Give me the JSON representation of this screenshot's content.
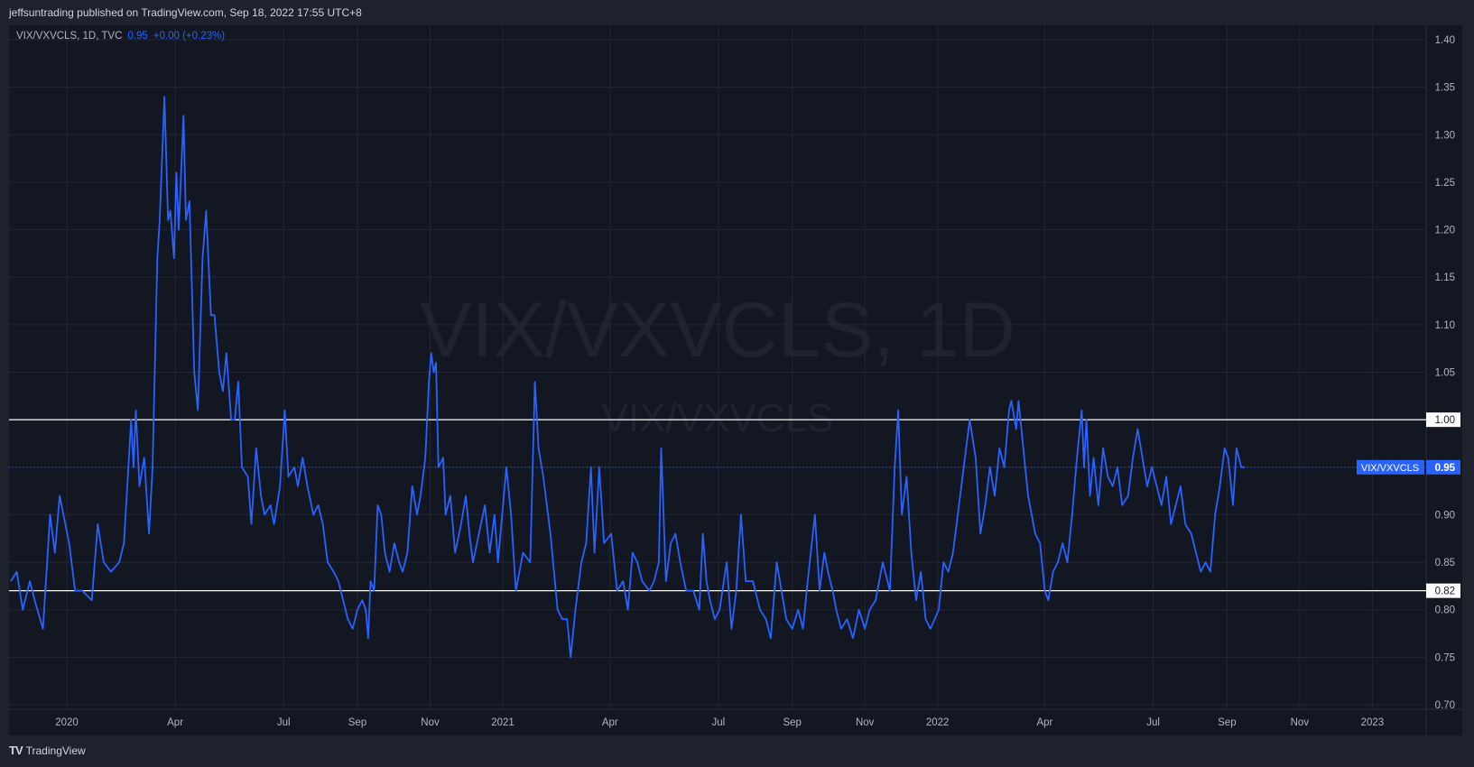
{
  "header": {
    "published": "jeffsuntrading published on TradingView.com, Sep 18, 2022 17:55 UTC+8"
  },
  "legend": {
    "symbol": "VIX/VXVCLS, 1D, TVC",
    "last": "0.95",
    "change": "+0.00 (+0.23%)"
  },
  "watermark": {
    "main": "VIX/VXVCLS, 1D",
    "sub": "VIX/VXVCLS"
  },
  "footer": {
    "brand": "TradingView",
    "logo": "tradingview-logo-icon"
  },
  "colors": {
    "background": "#131722",
    "line": "#2962ff",
    "grid": "#242733",
    "levels": "#ffffff"
  },
  "chart_data": {
    "type": "line",
    "title": "",
    "xlabel": "",
    "ylabel": "",
    "ylim": [
      0.7,
      1.4
    ],
    "grid": true,
    "y_ticks": [
      "1.40",
      "1.35",
      "1.30",
      "1.25",
      "1.20",
      "1.15",
      "1.10",
      "1.05",
      "1.00",
      "0.95",
      "0.90",
      "0.85",
      "0.80",
      "0.75",
      "0.70"
    ],
    "x_ticks": [
      {
        "label": "2020",
        "date": "2020-01-01"
      },
      {
        "label": "Apr",
        "date": "2020-04-01"
      },
      {
        "label": "Jul",
        "date": "2020-07-01"
      },
      {
        "label": "Sep",
        "date": "2020-09-01"
      },
      {
        "label": "Nov",
        "date": "2020-11-01"
      },
      {
        "label": "2021",
        "date": "2021-01-01"
      },
      {
        "label": "Apr",
        "date": "2021-04-01"
      },
      {
        "label": "Jul",
        "date": "2021-07-01"
      },
      {
        "label": "Sep",
        "date": "2021-09-01"
      },
      {
        "label": "Nov",
        "date": "2021-11-01"
      },
      {
        "label": "2022",
        "date": "2022-01-01"
      },
      {
        "label": "Apr",
        "date": "2022-04-01"
      },
      {
        "label": "Jul",
        "date": "2022-07-01"
      },
      {
        "label": "Sep",
        "date": "2022-09-01"
      },
      {
        "label": "Nov",
        "date": "2022-11-01"
      },
      {
        "label": "2023",
        "date": "2023-01-01"
      }
    ],
    "horizontal_levels": [
      {
        "value": 1.0,
        "label": "1.00"
      },
      {
        "value": 0.82,
        "label": "0.82"
      }
    ],
    "last_value": {
      "value": 0.95,
      "label": "0.95",
      "series_label": "VIX/VXVCLS"
    },
    "series": [
      {
        "name": "VIX/VXVCLS",
        "points": [
          [
            "2019-11-15",
            0.83
          ],
          [
            "2019-11-20",
            0.84
          ],
          [
            "2019-11-25",
            0.8
          ],
          [
            "2019-12-01",
            0.83
          ],
          [
            "2019-12-05",
            0.81
          ],
          [
            "2019-12-12",
            0.78
          ],
          [
            "2019-12-18",
            0.9
          ],
          [
            "2019-12-22",
            0.86
          ],
          [
            "2019-12-26",
            0.92
          ],
          [
            "2020-01-03",
            0.87
          ],
          [
            "2020-01-08",
            0.82
          ],
          [
            "2020-01-14",
            0.82
          ],
          [
            "2020-01-22",
            0.81
          ],
          [
            "2020-01-27",
            0.89
          ],
          [
            "2020-02-01",
            0.85
          ],
          [
            "2020-02-07",
            0.84
          ],
          [
            "2020-02-14",
            0.85
          ],
          [
            "2020-02-18",
            0.87
          ],
          [
            "2020-02-24",
            1.0
          ],
          [
            "2020-02-26",
            0.95
          ],
          [
            "2020-02-28",
            1.01
          ],
          [
            "2020-03-02",
            0.93
          ],
          [
            "2020-03-06",
            0.96
          ],
          [
            "2020-03-10",
            0.88
          ],
          [
            "2020-03-13",
            0.95
          ],
          [
            "2020-03-17",
            1.17
          ],
          [
            "2020-03-19",
            1.21
          ],
          [
            "2020-03-23",
            1.34
          ],
          [
            "2020-03-26",
            1.21
          ],
          [
            "2020-03-28",
            1.22
          ],
          [
            "2020-03-31",
            1.17
          ],
          [
            "2020-04-02",
            1.26
          ],
          [
            "2020-04-04",
            1.2
          ],
          [
            "2020-04-08",
            1.32
          ],
          [
            "2020-04-10",
            1.21
          ],
          [
            "2020-04-13",
            1.23
          ],
          [
            "2020-04-17",
            1.05
          ],
          [
            "2020-04-20",
            1.01
          ],
          [
            "2020-04-24",
            1.17
          ],
          [
            "2020-04-27",
            1.22
          ],
          [
            "2020-05-01",
            1.11
          ],
          [
            "2020-05-04",
            1.11
          ],
          [
            "2020-05-08",
            1.05
          ],
          [
            "2020-05-11",
            1.03
          ],
          [
            "2020-05-14",
            1.07
          ],
          [
            "2020-05-18",
            1.0
          ],
          [
            "2020-05-21",
            1.0
          ],
          [
            "2020-05-24",
            1.04
          ],
          [
            "2020-05-27",
            0.95
          ],
          [
            "2020-06-01",
            0.94
          ],
          [
            "2020-06-04",
            0.89
          ],
          [
            "2020-06-08",
            0.97
          ],
          [
            "2020-06-12",
            0.92
          ],
          [
            "2020-06-15",
            0.9
          ],
          [
            "2020-06-20",
            0.91
          ],
          [
            "2020-06-23",
            0.89
          ],
          [
            "2020-06-28",
            0.93
          ],
          [
            "2020-07-02",
            1.01
          ],
          [
            "2020-07-05",
            0.94
          ],
          [
            "2020-07-10",
            0.95
          ],
          [
            "2020-07-13",
            0.93
          ],
          [
            "2020-07-17",
            0.96
          ],
          [
            "2020-07-21",
            0.93
          ],
          [
            "2020-07-26",
            0.9
          ],
          [
            "2020-07-30",
            0.91
          ],
          [
            "2020-08-03",
            0.89
          ],
          [
            "2020-08-07",
            0.85
          ],
          [
            "2020-08-12",
            0.84
          ],
          [
            "2020-08-16",
            0.83
          ],
          [
            "2020-08-20",
            0.81
          ],
          [
            "2020-08-24",
            0.79
          ],
          [
            "2020-08-28",
            0.78
          ],
          [
            "2020-09-01",
            0.8
          ],
          [
            "2020-09-05",
            0.81
          ],
          [
            "2020-09-08",
            0.8
          ],
          [
            "2020-09-10",
            0.77
          ],
          [
            "2020-09-12",
            0.83
          ],
          [
            "2020-09-15",
            0.82
          ],
          [
            "2020-09-18",
            0.91
          ],
          [
            "2020-09-21",
            0.9
          ],
          [
            "2020-09-24",
            0.86
          ],
          [
            "2020-09-28",
            0.84
          ],
          [
            "2020-10-02",
            0.87
          ],
          [
            "2020-10-06",
            0.85
          ],
          [
            "2020-10-09",
            0.84
          ],
          [
            "2020-10-13",
            0.86
          ],
          [
            "2020-10-17",
            0.93
          ],
          [
            "2020-10-21",
            0.9
          ],
          [
            "2020-10-24",
            0.92
          ],
          [
            "2020-10-28",
            0.96
          ],
          [
            "2020-10-31",
            1.04
          ],
          [
            "2020-11-02",
            1.07
          ],
          [
            "2020-11-04",
            1.05
          ],
          [
            "2020-11-06",
            1.06
          ],
          [
            "2020-11-08",
            0.95
          ],
          [
            "2020-11-12",
            0.96
          ],
          [
            "2020-11-14",
            0.9
          ],
          [
            "2020-11-18",
            0.92
          ],
          [
            "2020-11-22",
            0.86
          ],
          [
            "2020-11-27",
            0.89
          ],
          [
            "2020-12-01",
            0.92
          ],
          [
            "2020-12-04",
            0.88
          ],
          [
            "2020-12-07",
            0.85
          ],
          [
            "2020-12-12",
            0.88
          ],
          [
            "2020-12-17",
            0.91
          ],
          [
            "2020-12-21",
            0.86
          ],
          [
            "2020-12-25",
            0.9
          ],
          [
            "2020-12-28",
            0.85
          ],
          [
            "2021-01-04",
            0.95
          ],
          [
            "2021-01-08",
            0.9
          ],
          [
            "2021-01-12",
            0.82
          ],
          [
            "2021-01-18",
            0.86
          ],
          [
            "2021-01-24",
            0.85
          ],
          [
            "2021-01-28",
            1.04
          ],
          [
            "2021-01-31",
            0.97
          ],
          [
            "2021-02-04",
            0.94
          ],
          [
            "2021-02-10",
            0.88
          ],
          [
            "2021-02-16",
            0.8
          ],
          [
            "2021-02-20",
            0.79
          ],
          [
            "2021-02-24",
            0.79
          ],
          [
            "2021-02-27",
            0.75
          ],
          [
            "2021-03-03",
            0.8
          ],
          [
            "2021-03-08",
            0.85
          ],
          [
            "2021-03-12",
            0.87
          ],
          [
            "2021-03-16",
            0.95
          ],
          [
            "2021-03-19",
            0.86
          ],
          [
            "2021-03-23",
            0.95
          ],
          [
            "2021-03-27",
            0.87
          ],
          [
            "2021-04-02",
            0.88
          ],
          [
            "2021-04-07",
            0.82
          ],
          [
            "2021-04-12",
            0.83
          ],
          [
            "2021-04-16",
            0.8
          ],
          [
            "2021-04-20",
            0.86
          ],
          [
            "2021-04-24",
            0.85
          ],
          [
            "2021-04-28",
            0.83
          ],
          [
            "2021-05-04",
            0.82
          ],
          [
            "2021-05-08",
            0.83
          ],
          [
            "2021-05-12",
            0.85
          ],
          [
            "2021-05-14",
            0.97
          ],
          [
            "2021-05-18",
            0.83
          ],
          [
            "2021-05-22",
            0.87
          ],
          [
            "2021-05-26",
            0.88
          ],
          [
            "2021-05-30",
            0.85
          ],
          [
            "2021-06-04",
            0.82
          ],
          [
            "2021-06-10",
            0.82
          ],
          [
            "2021-06-15",
            0.8
          ],
          [
            "2021-06-18",
            0.88
          ],
          [
            "2021-06-21",
            0.83
          ],
          [
            "2021-06-24",
            0.81
          ],
          [
            "2021-06-28",
            0.79
          ],
          [
            "2021-07-02",
            0.8
          ],
          [
            "2021-07-08",
            0.85
          ],
          [
            "2021-07-12",
            0.78
          ],
          [
            "2021-07-16",
            0.82
          ],
          [
            "2021-07-20",
            0.9
          ],
          [
            "2021-07-24",
            0.83
          ],
          [
            "2021-07-30",
            0.83
          ],
          [
            "2021-08-05",
            0.8
          ],
          [
            "2021-08-10",
            0.79
          ],
          [
            "2021-08-14",
            0.77
          ],
          [
            "2021-08-19",
            0.85
          ],
          [
            "2021-08-23",
            0.82
          ],
          [
            "2021-08-27",
            0.79
          ],
          [
            "2021-09-01",
            0.78
          ],
          [
            "2021-09-06",
            0.8
          ],
          [
            "2021-09-10",
            0.78
          ],
          [
            "2021-09-14",
            0.83
          ],
          [
            "2021-09-20",
            0.9
          ],
          [
            "2021-09-24",
            0.82
          ],
          [
            "2021-09-28",
            0.86
          ],
          [
            "2021-10-01",
            0.84
          ],
          [
            "2021-10-05",
            0.82
          ],
          [
            "2021-10-08",
            0.8
          ],
          [
            "2021-10-12",
            0.78
          ],
          [
            "2021-10-17",
            0.79
          ],
          [
            "2021-10-22",
            0.77
          ],
          [
            "2021-10-27",
            0.8
          ],
          [
            "2021-11-01",
            0.78
          ],
          [
            "2021-11-05",
            0.8
          ],
          [
            "2021-11-10",
            0.81
          ],
          [
            "2021-11-16",
            0.85
          ],
          [
            "2021-11-22",
            0.82
          ],
          [
            "2021-11-26",
            0.95
          ],
          [
            "2021-11-29",
            1.01
          ],
          [
            "2021-12-02",
            0.9
          ],
          [
            "2021-12-06",
            0.94
          ],
          [
            "2021-12-10",
            0.86
          ],
          [
            "2021-12-14",
            0.81
          ],
          [
            "2021-12-18",
            0.84
          ],
          [
            "2021-12-22",
            0.79
          ],
          [
            "2021-12-26",
            0.78
          ],
          [
            "2022-01-02",
            0.8
          ],
          [
            "2022-01-06",
            0.85
          ],
          [
            "2022-01-10",
            0.84
          ],
          [
            "2022-01-14",
            0.86
          ],
          [
            "2022-01-18",
            0.9
          ],
          [
            "2022-01-24",
            0.96
          ],
          [
            "2022-01-28",
            1.0
          ],
          [
            "2022-02-02",
            0.96
          ],
          [
            "2022-02-06",
            0.88
          ],
          [
            "2022-02-10",
            0.91
          ],
          [
            "2022-02-14",
            0.95
          ],
          [
            "2022-02-18",
            0.92
          ],
          [
            "2022-02-22",
            0.97
          ],
          [
            "2022-02-26",
            0.95
          ],
          [
            "2022-03-02",
            1.01
          ],
          [
            "2022-03-04",
            1.02
          ],
          [
            "2022-03-08",
            0.99
          ],
          [
            "2022-03-10",
            1.02
          ],
          [
            "2022-03-14",
            0.97
          ],
          [
            "2022-03-18",
            0.92
          ],
          [
            "2022-03-24",
            0.88
          ],
          [
            "2022-03-28",
            0.87
          ],
          [
            "2022-04-01",
            0.82
          ],
          [
            "2022-04-04",
            0.81
          ],
          [
            "2022-04-08",
            0.84
          ],
          [
            "2022-04-12",
            0.85
          ],
          [
            "2022-04-16",
            0.87
          ],
          [
            "2022-04-20",
            0.85
          ],
          [
            "2022-04-24",
            0.9
          ],
          [
            "2022-04-28",
            0.96
          ],
          [
            "2022-05-02",
            1.01
          ],
          [
            "2022-05-04",
            0.95
          ],
          [
            "2022-05-06",
            1.0
          ],
          [
            "2022-05-09",
            0.92
          ],
          [
            "2022-05-12",
            0.96
          ],
          [
            "2022-05-16",
            0.91
          ],
          [
            "2022-05-20",
            0.97
          ],
          [
            "2022-05-24",
            0.94
          ],
          [
            "2022-05-28",
            0.93
          ],
          [
            "2022-06-01",
            0.95
          ],
          [
            "2022-06-05",
            0.91
          ],
          [
            "2022-06-10",
            0.92
          ],
          [
            "2022-06-14",
            0.96
          ],
          [
            "2022-06-18",
            0.99
          ],
          [
            "2022-06-22",
            0.96
          ],
          [
            "2022-06-26",
            0.93
          ],
          [
            "2022-06-30",
            0.95
          ],
          [
            "2022-07-04",
            0.93
          ],
          [
            "2022-07-08",
            0.91
          ],
          [
            "2022-07-12",
            0.94
          ],
          [
            "2022-07-16",
            0.89
          ],
          [
            "2022-07-20",
            0.91
          ],
          [
            "2022-07-24",
            0.93
          ],
          [
            "2022-07-28",
            0.89
          ],
          [
            "2022-08-02",
            0.88
          ],
          [
            "2022-08-06",
            0.86
          ],
          [
            "2022-08-10",
            0.84
          ],
          [
            "2022-08-14",
            0.85
          ],
          [
            "2022-08-18",
            0.84
          ],
          [
            "2022-08-22",
            0.9
          ],
          [
            "2022-08-26",
            0.93
          ],
          [
            "2022-08-30",
            0.97
          ],
          [
            "2022-09-02",
            0.96
          ],
          [
            "2022-09-06",
            0.91
          ],
          [
            "2022-09-09",
            0.97
          ],
          [
            "2022-09-13",
            0.95
          ],
          [
            "2022-09-16",
            0.95
          ]
        ]
      }
    ]
  }
}
